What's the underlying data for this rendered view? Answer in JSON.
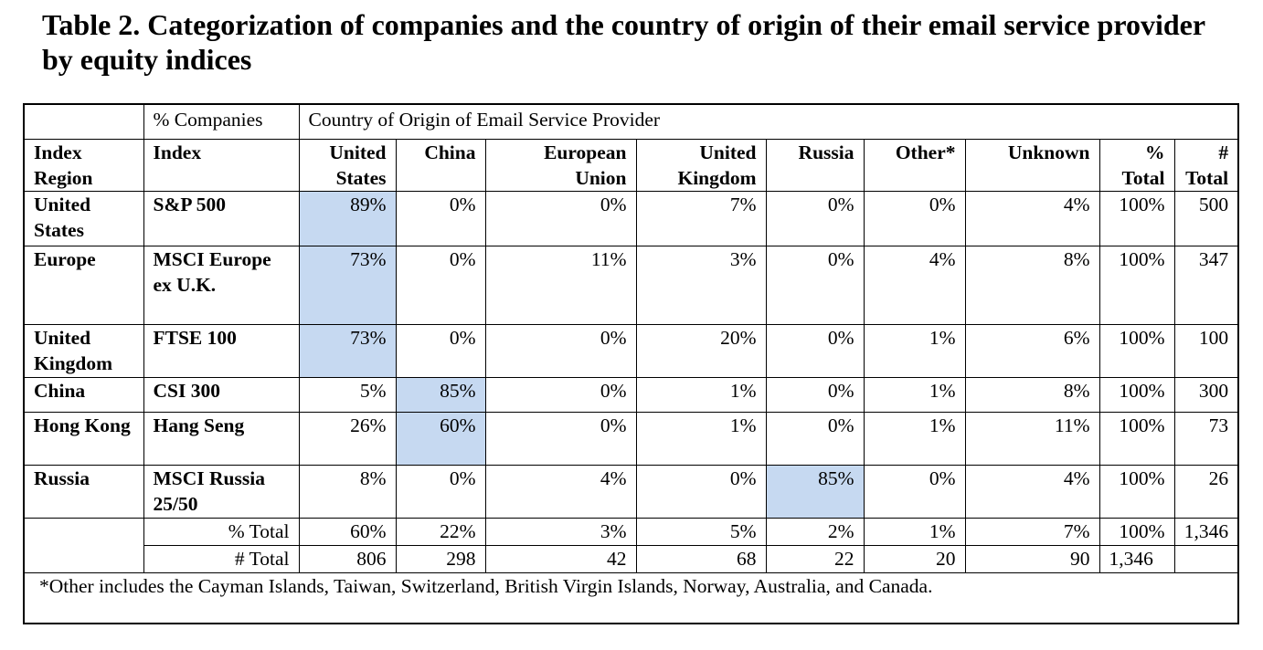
{
  "caption": "Table 2. Categorization of companies and the country of origin of their email service provider by equity indices",
  "header_top": {
    "companies_label": "% Companies",
    "country_label": "Country of Origin of Email Service Provider"
  },
  "columns": {
    "index_region": "Index Region",
    "index": "Index",
    "us": "United States",
    "china": "China",
    "eu": "European Union",
    "uk": "United Kingdom",
    "russia": "Russia",
    "other": "Other*",
    "unknown": "Unknown",
    "pct_total": "% Total",
    "num_total": "# Total"
  },
  "rows": [
    {
      "region": "United States",
      "index": "S&P 500",
      "values": [
        "89%",
        "0%",
        "0%",
        "7%",
        "0%",
        "0%",
        "4%",
        "100%",
        "500"
      ],
      "highlight": 0
    },
    {
      "region": "Europe",
      "index": "MSCI Europe ex U.K.",
      "values": [
        "73%",
        "0%",
        "11%",
        "3%",
        "0%",
        "4%",
        "8%",
        "100%",
        "347"
      ],
      "highlight": 0
    },
    {
      "region": "United Kingdom",
      "index": "FTSE 100",
      "values": [
        "73%",
        "0%",
        "0%",
        "20%",
        "0%",
        "1%",
        "6%",
        "100%",
        "100"
      ],
      "highlight": 0
    },
    {
      "region": "China",
      "index": "CSI 300",
      "values": [
        "5%",
        "85%",
        "0%",
        "1%",
        "0%",
        "1%",
        "8%",
        "100%",
        "300"
      ],
      "highlight": 1
    },
    {
      "region": "Hong Kong",
      "index": "Hang Seng",
      "values": [
        "26%",
        "60%",
        "0%",
        "1%",
        "0%",
        "1%",
        "11%",
        "100%",
        "73"
      ],
      "highlight": 1
    },
    {
      "region": "Russia",
      "index": "MSCI Russia 25/50",
      "values": [
        "8%",
        "0%",
        "4%",
        "0%",
        "85%",
        "0%",
        "4%",
        "100%",
        "26"
      ],
      "highlight": 4
    }
  ],
  "totals": {
    "pct_label": "% Total",
    "pct_values": [
      "60%",
      "22%",
      "3%",
      "5%",
      "2%",
      "1%",
      "7%",
      "100%",
      "1,346"
    ],
    "num_label": "# Total",
    "num_values": [
      "806",
      "298",
      "42",
      "68",
      "22",
      "20",
      "90",
      "1,346",
      ""
    ]
  },
  "footnote": "*Other includes the Cayman Islands, Taiwan, Switzerland, British Virgin Islands, Norway, Australia, and Canada.",
  "colors": {
    "highlight": "#c6d9f1"
  }
}
